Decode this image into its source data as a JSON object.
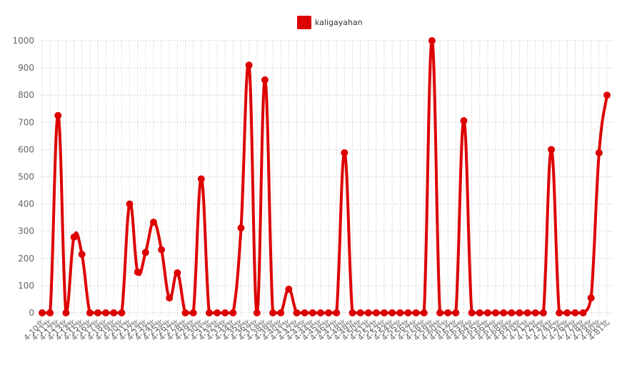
{
  "chart_data": {
    "type": "line",
    "series": [
      {
        "name": "kaligayahan",
        "color": "#dd0000",
        "values": [
          0,
          0,
          725,
          0,
          278,
          215,
          0,
          0,
          0,
          0,
          0,
          400,
          150,
          222,
          333,
          232,
          55,
          147,
          0,
          0,
          492,
          0,
          0,
          0,
          0,
          312,
          910,
          0,
          856,
          0,
          0,
          87,
          0,
          0,
          0,
          0,
          0,
          0,
          588,
          0,
          0,
          0,
          0,
          0,
          0,
          0,
          0,
          0,
          0,
          1000,
          0,
          0,
          0,
          706,
          0,
          0,
          0,
          0,
          0,
          0,
          0,
          0,
          0,
          0,
          600,
          0,
          0,
          0,
          0,
          55,
          588,
          800
        ]
      }
    ],
    "categories": [
      "4-10",
      "4-11",
      "4-12",
      "4-13",
      "4-14",
      "4-15",
      "4-16",
      "4-17",
      "4-18",
      "4-19",
      "4-20",
      "4-21",
      "4-22",
      "4-23",
      "4-24",
      "4-25",
      "4-26",
      "4-27",
      "4-28",
      "4-29",
      "4-30",
      "4-31",
      "4-32",
      "4-33",
      "4-34",
      "4-35",
      "4-36",
      "4-37",
      "4-38",
      "4-39",
      "4-40",
      "4-41",
      "4-42",
      "4-43",
      "4-44",
      "4-45",
      "4-46",
      "4-47",
      "4-48",
      "4-49",
      "4-50",
      "4-51",
      "4-52",
      "4-53",
      "4-54",
      "4-55",
      "4-56",
      "4-57",
      "4-58",
      "4-59",
      "4-60",
      "4-61",
      "4-62",
      "4-63",
      "4-64",
      "4-65",
      "4-66",
      "4-67",
      "4-68",
      "4-69",
      "4-70",
      "4-71",
      "4-72",
      "4-73",
      "4-74",
      "4-75",
      "4-76",
      "4-77",
      "4-78",
      "4-79",
      "4-80",
      "4-81"
    ],
    "tick_suffix": "北",
    "ylim": [
      0,
      1000
    ],
    "yticks": [
      0,
      100,
      200,
      300,
      400,
      500,
      600,
      700,
      800,
      900,
      1000
    ],
    "grid": true,
    "legend": "top-center"
  }
}
